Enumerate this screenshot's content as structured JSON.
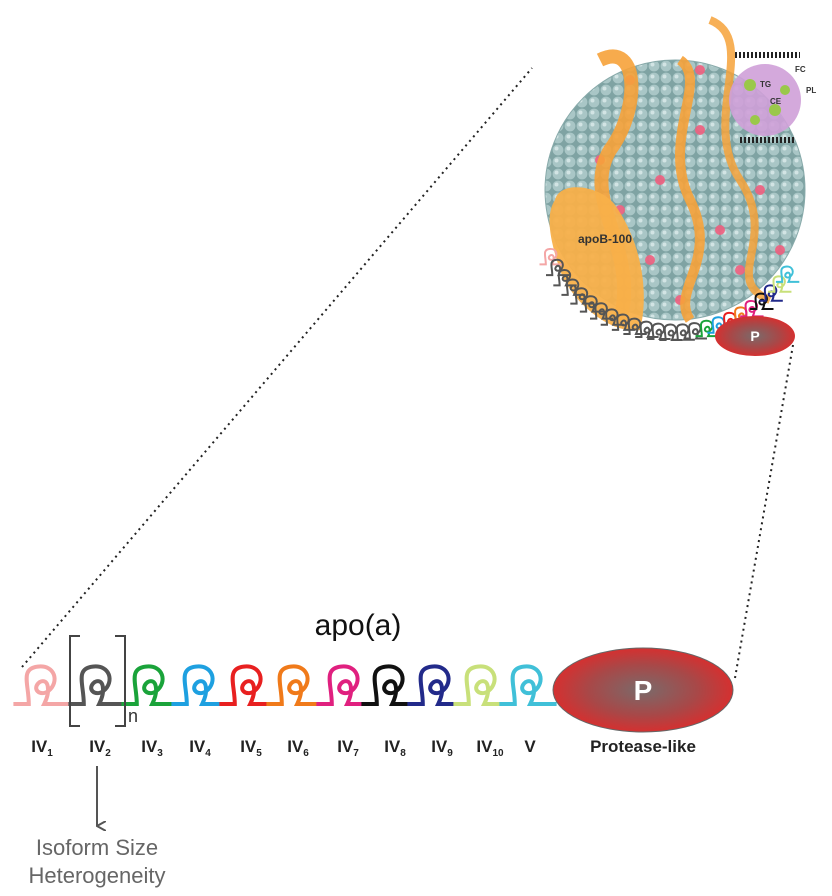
{
  "title": "apo(a)",
  "kringles": [
    {
      "main": "IV",
      "sub": "1",
      "color": "#f4a6a6"
    },
    {
      "main": "IV",
      "sub": "2",
      "color": "#555555"
    },
    {
      "main": "IV",
      "sub": "3",
      "color": "#1aa33a"
    },
    {
      "main": "IV",
      "sub": "4",
      "color": "#1ea0e0"
    },
    {
      "main": "IV",
      "sub": "5",
      "color": "#e82020"
    },
    {
      "main": "IV",
      "sub": "6",
      "color": "#f07a1a"
    },
    {
      "main": "IV",
      "sub": "7",
      "color": "#e0207f"
    },
    {
      "main": "IV",
      "sub": "8",
      "color": "#111111"
    },
    {
      "main": "IV",
      "sub": "9",
      "color": "#222a8a"
    },
    {
      "main": "IV",
      "sub": "10",
      "color": "#c8e07a"
    },
    {
      "main": "V",
      "color": "#40c0d8"
    }
  ],
  "repeat_label": "n",
  "protease": {
    "label": "Protease-like",
    "symbol": "P"
  },
  "annotation": [
    "Isoform Size",
    "Heterogeneity"
  ],
  "particle": {
    "apob_label": "apoB-100",
    "p_label": "P",
    "lipids": [
      "FC",
      "TG",
      "PL",
      "CE"
    ]
  }
}
